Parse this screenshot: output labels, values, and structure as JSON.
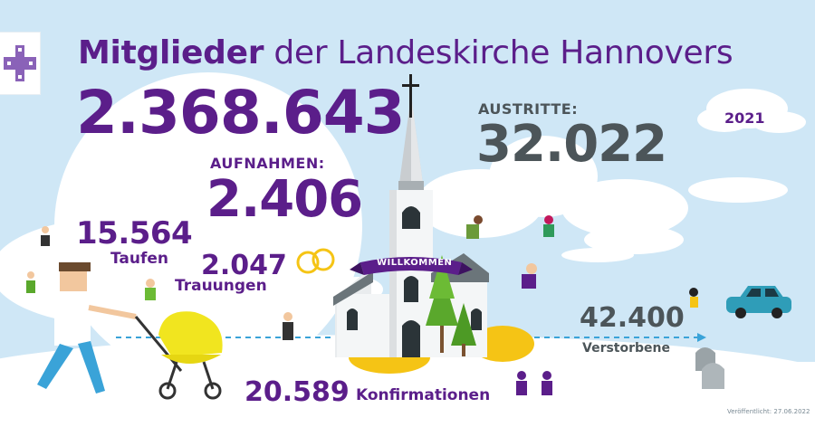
{
  "title": {
    "bold": "Mitglieder",
    "rest": " der Landeskirche Hannovers"
  },
  "total_members": "2.368.643",
  "year": "2021",
  "admissions": {
    "label": "AUFNAHMEN:",
    "value": "2.406"
  },
  "exits": {
    "label": "AUSTRITTE:",
    "value": "32.022"
  },
  "baptisms": {
    "value": "15.564",
    "label": "Taufen"
  },
  "weddings": {
    "value": "2.047",
    "label": "Trauungen"
  },
  "confirmations": {
    "value": "20.589",
    "label": "Konfirmationen"
  },
  "deceased": {
    "value": "42.400",
    "label": "Verstorbene"
  },
  "banner": "WILLKOMMEN",
  "published": "Veröffentlicht: 27.06.2022",
  "colors": {
    "purple": "#5b1e8a",
    "gray": "#4c5559",
    "sky": "#cfe7f6"
  }
}
